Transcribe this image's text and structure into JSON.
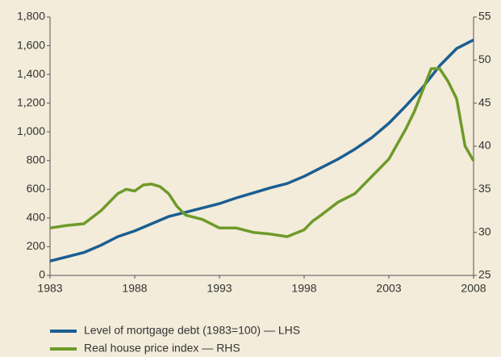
{
  "chart_data": {
    "type": "line",
    "xlim": [
      1983,
      2008
    ],
    "xticks": [
      1983,
      1988,
      1993,
      1998,
      2003,
      2008
    ],
    "ylim": [
      0,
      1800
    ],
    "yticks": [
      0,
      {
        "value": 200,
        "label": "200"
      },
      {
        "value": 400,
        "label": "400"
      },
      {
        "value": 600,
        "label": "600"
      },
      {
        "value": 800,
        "label": "800"
      },
      {
        "value": 1000,
        "label": "1,000"
      },
      {
        "value": 1200,
        "label": "1,200"
      },
      {
        "value": 1400,
        "label": "1,400"
      },
      {
        "value": 1600,
        "label": "1,600"
      },
      {
        "value": 1800,
        "label": "1,800"
      }
    ],
    "y2lim": [
      25,
      55
    ],
    "y2ticks": [
      25,
      30,
      35,
      40,
      45,
      50,
      55
    ],
    "series": [
      {
        "name": "Level of mortgage debt (1983=100) — LHS",
        "color": "#1a5e92",
        "x": [
          1983,
          1984,
          1985,
          1986,
          1987,
          1988,
          1989,
          1990,
          1991,
          1992,
          1993,
          1994,
          1995,
          1996,
          1997,
          1998,
          1999,
          2000,
          2001,
          2002,
          2003,
          2004,
          2005,
          2006,
          2007,
          2008
        ],
        "values": [
          100,
          130,
          160,
          210,
          270,
          310,
          360,
          410,
          440,
          470,
          500,
          540,
          575,
          610,
          640,
          690,
          750,
          810,
          880,
          960,
          1060,
          1180,
          1310,
          1460,
          1580,
          1640
        ]
      },
      {
        "name": "Real house price index — RHS",
        "color": "#6e9a2a",
        "axis": "y2",
        "x": [
          1983,
          1984,
          1985,
          1986,
          1987,
          1987.5,
          1988,
          1988.5,
          1989,
          1989.5,
          1990,
          1990.5,
          1991,
          1992,
          1993,
          1994,
          1995,
          1996,
          1997,
          1998,
          1998.5,
          1999,
          2000,
          2001,
          2002,
          2003,
          2004,
          2004.5,
          2005,
          2005.5,
          2006,
          2006.5,
          2007,
          2007.5,
          2008
        ],
        "values": [
          30.5,
          30.8,
          31,
          32.5,
          34.5,
          35,
          34.8,
          35.5,
          35.6,
          35.3,
          34.5,
          33,
          32,
          31.5,
          30.5,
          30.5,
          30,
          29.8,
          29.5,
          30.3,
          31.3,
          32,
          33.5,
          34.5,
          36.5,
          38.5,
          42,
          44,
          46.5,
          49,
          49,
          47.5,
          45.5,
          40,
          38.3
        ]
      }
    ]
  }
}
